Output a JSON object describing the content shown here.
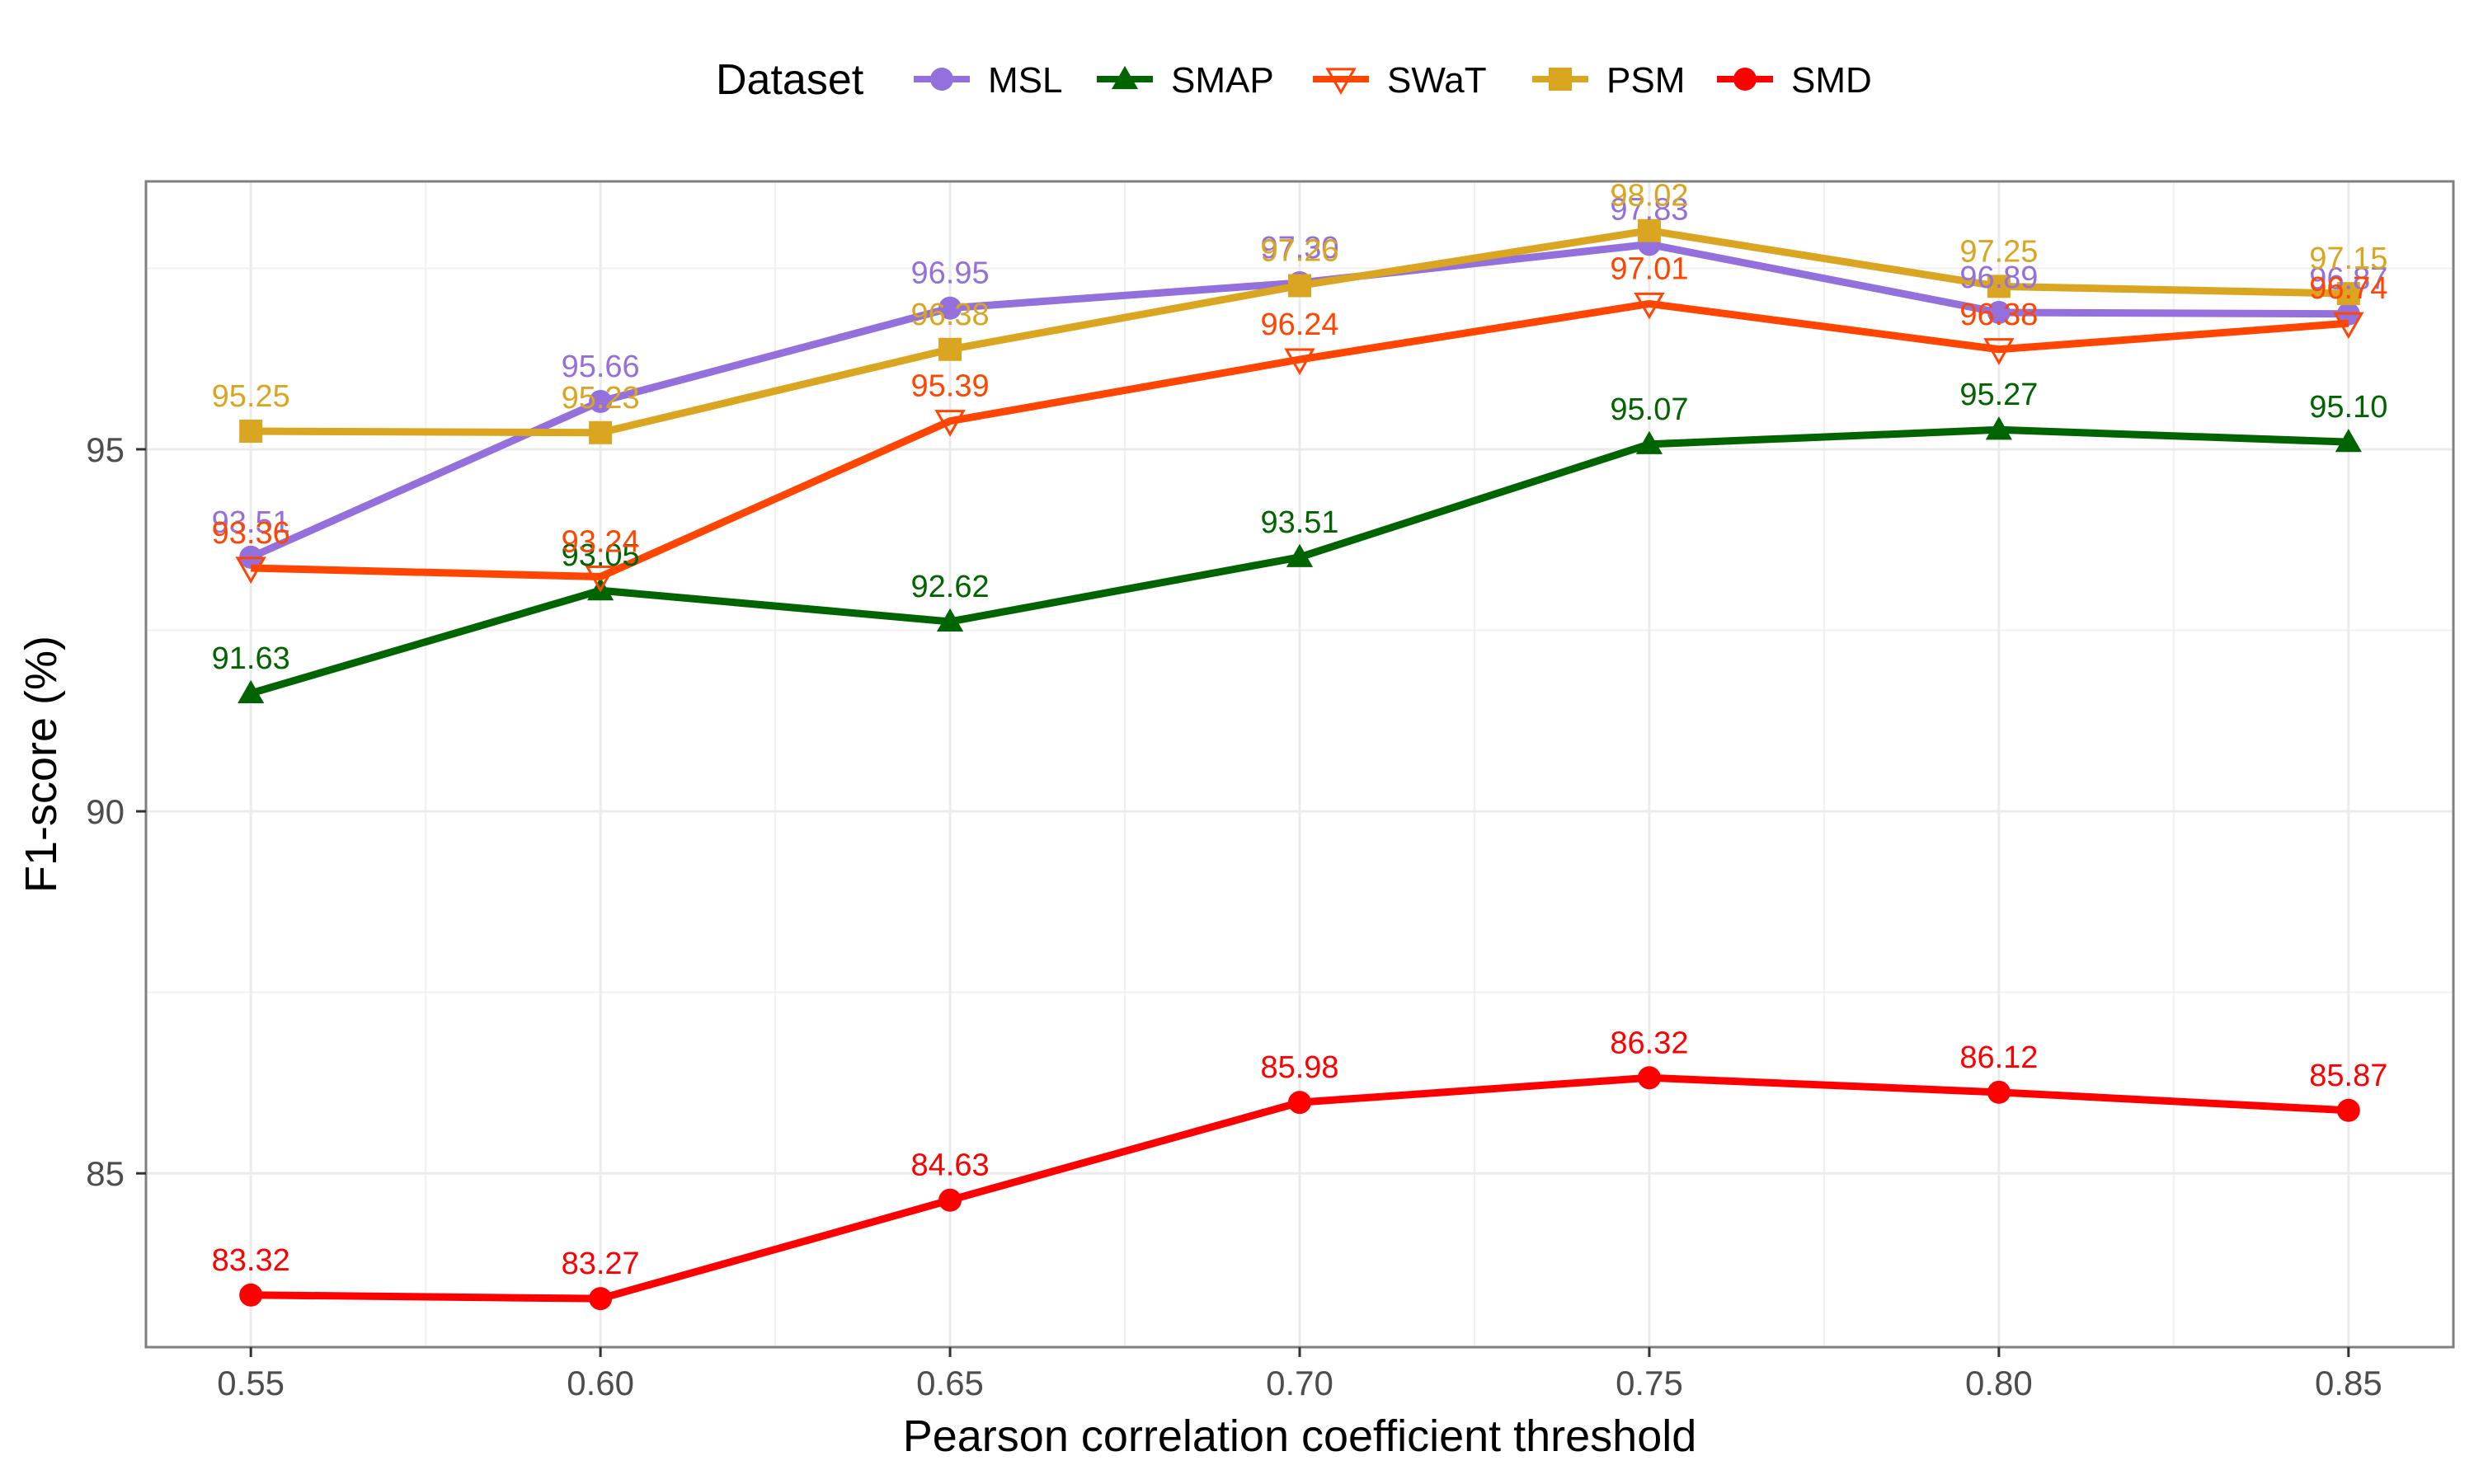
{
  "chart_data": {
    "type": "line",
    "xlabel": "Pearson correlation coefficient threshold",
    "ylabel": "F1-score (%)",
    "x": [
      0.55,
      0.6,
      0.65,
      0.7,
      0.75,
      0.8,
      0.85
    ],
    "x_tick_labels": [
      "0.55",
      "0.60",
      "0.65",
      "0.70",
      "0.75",
      "0.80",
      "0.85"
    ],
    "xlim": [
      0.535,
      0.865
    ],
    "ylim": [
      82.6,
      98.7
    ],
    "y_ticks": [
      85,
      90,
      95
    ],
    "y_tick_labels": [
      "85",
      "90",
      "95"
    ],
    "grid": true,
    "legend": {
      "title": "Dataset",
      "position": "top"
    },
    "series": [
      {
        "name": "MSL",
        "color": "#9370DB",
        "marker": "circle",
        "values": [
          93.51,
          95.66,
          96.95,
          97.3,
          97.83,
          96.89,
          96.87
        ],
        "labels": [
          "93.51",
          "95.66",
          "96.95",
          "97.30",
          "97.83",
          "96.89",
          "96.87"
        ]
      },
      {
        "name": "SMAP",
        "color": "#006400",
        "marker": "triangle",
        "values": [
          91.63,
          93.05,
          92.62,
          93.51,
          95.07,
          95.27,
          95.1
        ],
        "labels": [
          "91.63",
          "93.05",
          "92.62",
          "93.51",
          "95.07",
          "95.27",
          "95.10"
        ]
      },
      {
        "name": "SWaT",
        "color": "#FF4500",
        "marker": "triangle-down-open",
        "values": [
          93.36,
          93.24,
          95.39,
          96.24,
          97.01,
          96.38,
          96.74
        ],
        "labels": [
          "93.36",
          "93.24",
          "95.39",
          "96.24",
          "97.01",
          "96.38",
          "96.74"
        ]
      },
      {
        "name": "PSM",
        "color": "#DAA520",
        "marker": "square",
        "values": [
          95.25,
          95.23,
          96.38,
          97.26,
          98.02,
          97.25,
          97.15
        ],
        "labels": [
          "95.25",
          "95.23",
          "96.38",
          "97.26",
          "98.02",
          "97.25",
          "97.15"
        ]
      },
      {
        "name": "SMD",
        "color": "#FF0000",
        "marker": "circle",
        "values": [
          83.32,
          83.27,
          84.63,
          85.98,
          86.32,
          86.12,
          85.87
        ],
        "labels": [
          "83.32",
          "83.27",
          "84.63",
          "85.98",
          "86.32",
          "86.12",
          "85.87"
        ]
      }
    ]
  }
}
